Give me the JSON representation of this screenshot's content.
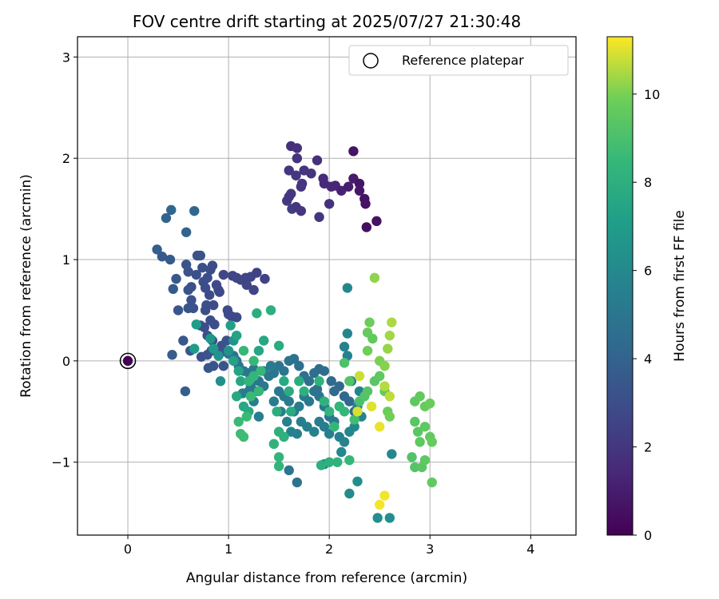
{
  "chart_data": {
    "type": "scatter",
    "title": "FOV centre drift starting at 2025/07/27 21:30:48",
    "xlabel": "Angular distance from reference (arcmin)",
    "ylabel": "Rotation from reference (arcmin)",
    "xlim": [
      -0.5,
      4.45
    ],
    "ylim": [
      -1.72,
      3.2
    ],
    "xticks": [
      "0",
      "1",
      "2",
      "3",
      "4"
    ],
    "yticks": [
      "−1",
      "0",
      "1",
      "2",
      "3"
    ],
    "grid": true,
    "legend": {
      "placement": "top-right",
      "label": "Reference platepar"
    },
    "colorbar": {
      "label": "Hours from first FF file",
      "range": [
        0,
        11.3
      ],
      "ticks": [
        "0",
        "2",
        "4",
        "6",
        "8",
        "10"
      ],
      "colormap": "viridis"
    },
    "reference_point": {
      "x": 0,
      "y": 0,
      "hours": 0
    },
    "points": [
      [
        1.62,
        2.12,
        1.7
      ],
      [
        1.68,
        2.1,
        1.8
      ],
      [
        1.88,
        1.98,
        1.7
      ],
      [
        1.68,
        2.0,
        1.9
      ],
      [
        1.75,
        1.88,
        1.9
      ],
      [
        1.82,
        1.85,
        1.9
      ],
      [
        1.6,
        1.88,
        2.0
      ],
      [
        1.67,
        1.83,
        2.0
      ],
      [
        1.94,
        1.8,
        1.5
      ],
      [
        1.95,
        1.75,
        1.5
      ],
      [
        1.72,
        1.72,
        1.9
      ],
      [
        1.73,
        1.75,
        2.0
      ],
      [
        1.62,
        1.65,
        2.1
      ],
      [
        1.58,
        1.58,
        2.2
      ],
      [
        1.63,
        1.5,
        2.3
      ],
      [
        1.67,
        1.52,
        2.0
      ],
      [
        1.72,
        1.48,
        2.0
      ],
      [
        1.9,
        1.42,
        2.0
      ],
      [
        2.0,
        1.55,
        1.8
      ],
      [
        2.02,
        1.72,
        1.4
      ],
      [
        2.06,
        1.73,
        1.3
      ],
      [
        2.12,
        1.68,
        1.2
      ],
      [
        2.19,
        1.72,
        1.0
      ],
      [
        2.24,
        1.8,
        0.9
      ],
      [
        2.24,
        2.07,
        0.7
      ],
      [
        2.3,
        1.75,
        0.7
      ],
      [
        2.3,
        1.68,
        0.8
      ],
      [
        2.35,
        1.6,
        0.6
      ],
      [
        2.36,
        1.55,
        0.6
      ],
      [
        2.37,
        1.32,
        0.5
      ],
      [
        2.47,
        1.38,
        0.6
      ],
      [
        1.6,
        1.62,
        2.0
      ],
      [
        0.43,
        1.49,
        4.2
      ],
      [
        0.38,
        1.41,
        4.0
      ],
      [
        0.66,
        1.48,
        4.2
      ],
      [
        0.58,
        1.27,
        4.0
      ],
      [
        0.29,
        1.1,
        3.8
      ],
      [
        0.34,
        1.03,
        3.6
      ],
      [
        0.42,
        1.0,
        3.6
      ],
      [
        0.48,
        0.81,
        3.5
      ],
      [
        0.45,
        0.71,
        3.6
      ],
      [
        0.5,
        0.5,
        3.4
      ],
      [
        0.58,
        0.95,
        3.3
      ],
      [
        0.6,
        0.88,
        3.2
      ],
      [
        0.69,
        1.04,
        3.2
      ],
      [
        0.72,
        1.04,
        3.2
      ],
      [
        0.74,
        0.92,
        3.1
      ],
      [
        0.68,
        0.85,
        3.1
      ],
      [
        0.79,
        0.82,
        3.0
      ],
      [
        0.82,
        0.9,
        3.0
      ],
      [
        0.63,
        0.73,
        3.1
      ],
      [
        0.6,
        0.7,
        3.2
      ],
      [
        0.63,
        0.6,
        3.2
      ],
      [
        0.65,
        0.52,
        3.2
      ],
      [
        0.6,
        0.52,
        3.3
      ],
      [
        0.55,
        0.2,
        3.5
      ],
      [
        0.62,
        0.1,
        3.6
      ],
      [
        0.44,
        0.06,
        3.7
      ],
      [
        0.57,
        -0.3,
        3.7
      ],
      [
        0.75,
        0.78,
        3.0
      ],
      [
        0.77,
        0.72,
        3.0
      ],
      [
        0.81,
        0.65,
        2.9
      ],
      [
        0.84,
        0.94,
        2.9
      ],
      [
        0.9,
        0.7,
        2.8
      ],
      [
        0.91,
        0.68,
        2.8
      ],
      [
        0.78,
        0.55,
        3.0
      ],
      [
        0.85,
        0.55,
        2.9
      ],
      [
        0.72,
        0.35,
        3.0
      ],
      [
        0.76,
        0.33,
        3.0
      ],
      [
        0.79,
        0.25,
        3.1
      ],
      [
        0.84,
        0.2,
        3.1
      ],
      [
        0.82,
        0.4,
        3.0
      ],
      [
        0.86,
        0.36,
        3.0
      ],
      [
        0.77,
        0.5,
        3.0
      ],
      [
        0.73,
        0.04,
        3.1
      ],
      [
        0.79,
        0.06,
        3.2
      ],
      [
        0.83,
        0.1,
        3.2
      ],
      [
        0.85,
        -0.05,
        3.3
      ],
      [
        0.8,
        -0.07,
        3.4
      ],
      [
        0.92,
        0.08,
        3.3
      ],
      [
        0.95,
        -0.05,
        3.4
      ],
      [
        0.99,
        0.5,
        2.9
      ],
      [
        1.0,
        0.46,
        2.9
      ],
      [
        1.03,
        0.44,
        2.8
      ],
      [
        1.08,
        0.43,
        2.8
      ],
      [
        1.04,
        0.84,
        2.6
      ],
      [
        1.08,
        0.82,
        2.6
      ],
      [
        1.12,
        0.8,
        2.6
      ],
      [
        1.17,
        0.82,
        2.6
      ],
      [
        1.22,
        0.83,
        2.6
      ],
      [
        1.28,
        0.87,
        2.5
      ],
      [
        1.36,
        0.81,
        2.5
      ],
      [
        1.25,
        0.7,
        2.6
      ],
      [
        1.18,
        0.75,
        2.6
      ],
      [
        0.95,
        0.85,
        2.7
      ],
      [
        0.88,
        0.75,
        2.8
      ],
      [
        0.93,
        0.15,
        3.2
      ],
      [
        0.98,
        0.2,
        3.3
      ],
      [
        1.0,
        0.07,
        4.8
      ],
      [
        1.05,
        0.05,
        4.8
      ],
      [
        1.08,
        0.0,
        4.9
      ],
      [
        1.1,
        -0.05,
        4.9
      ],
      [
        1.15,
        -0.1,
        5.0
      ],
      [
        1.2,
        -0.12,
        5.0
      ],
      [
        1.25,
        -0.08,
        5.1
      ],
      [
        1.3,
        -0.2,
        5.0
      ],
      [
        1.22,
        -0.25,
        5.0
      ],
      [
        1.28,
        -0.3,
        5.2
      ],
      [
        1.35,
        -0.25,
        5.1
      ],
      [
        1.4,
        -0.15,
        5.1
      ],
      [
        1.45,
        -0.12,
        5.0
      ],
      [
        1.5,
        -0.05,
        5.0
      ],
      [
        1.55,
        -0.1,
        5.0
      ],
      [
        1.6,
        0.0,
        4.9
      ],
      [
        1.65,
        0.02,
        4.8
      ],
      [
        1.7,
        -0.05,
        4.7
      ],
      [
        1.75,
        -0.15,
        4.7
      ],
      [
        1.8,
        -0.2,
        4.6
      ],
      [
        1.85,
        -0.12,
        4.6
      ],
      [
        1.9,
        -0.08,
        4.5
      ],
      [
        1.95,
        -0.1,
        4.5
      ],
      [
        2.02,
        -0.2,
        4.4
      ],
      [
        2.05,
        -0.3,
        4.4
      ],
      [
        2.1,
        -0.25,
        4.4
      ],
      [
        2.15,
        -0.35,
        4.3
      ],
      [
        2.2,
        -0.4,
        4.3
      ],
      [
        2.25,
        -0.5,
        4.2
      ],
      [
        1.5,
        -0.3,
        5.1
      ],
      [
        1.55,
        -0.35,
        5.2
      ],
      [
        1.6,
        -0.4,
        5.2
      ],
      [
        1.65,
        -0.5,
        5.2
      ],
      [
        1.7,
        -0.45,
        5.3
      ],
      [
        1.75,
        -0.35,
        5.2
      ],
      [
        1.8,
        -0.4,
        5.1
      ],
      [
        1.85,
        -0.3,
        5.0
      ],
      [
        1.9,
        -0.35,
        5.0
      ],
      [
        1.95,
        -0.45,
        5.0
      ],
      [
        2.0,
        -0.55,
        5.0
      ],
      [
        1.45,
        -0.4,
        5.3
      ],
      [
        1.52,
        -0.5,
        5.4
      ],
      [
        1.58,
        -0.6,
        5.5
      ],
      [
        1.62,
        -0.7,
        5.6
      ],
      [
        1.68,
        -0.72,
        5.6
      ],
      [
        1.72,
        -0.6,
        5.5
      ],
      [
        1.78,
        -0.65,
        5.5
      ],
      [
        1.85,
        -0.7,
        5.6
      ],
      [
        1.9,
        -0.6,
        5.4
      ],
      [
        1.95,
        -0.65,
        5.4
      ],
      [
        2.0,
        -0.72,
        5.5
      ],
      [
        2.05,
        -0.6,
        5.3
      ],
      [
        2.1,
        -0.75,
        5.6
      ],
      [
        2.15,
        -0.8,
        5.7
      ],
      [
        2.2,
        -0.7,
        5.8
      ],
      [
        2.25,
        -0.65,
        5.9
      ],
      [
        2.28,
        -0.45,
        5.7
      ],
      [
        2.32,
        -0.55,
        5.8
      ],
      [
        2.3,
        -0.3,
        5.6
      ],
      [
        2.22,
        -0.2,
        5.5
      ],
      [
        2.18,
        0.05,
        5.6
      ],
      [
        2.15,
        0.14,
        5.7
      ],
      [
        2.18,
        0.27,
        5.8
      ],
      [
        2.18,
        0.72,
        5.9
      ],
      [
        1.6,
        -1.08,
        5.0
      ],
      [
        1.68,
        -1.2,
        4.9
      ],
      [
        1.95,
        -1.02,
        5.1
      ],
      [
        2.2,
        -1.31,
        6.1
      ],
      [
        2.28,
        -1.19,
        6.2
      ],
      [
        2.48,
        -1.55,
        6.3
      ],
      [
        2.6,
        -1.55,
        6.3
      ],
      [
        2.62,
        -0.92,
        5.9
      ],
      [
        2.12,
        -0.9,
        6.0
      ],
      [
        1.35,
        -0.1,
        5.3
      ],
      [
        1.42,
        -0.05,
        5.3
      ],
      [
        1.2,
        -0.3,
        5.2
      ],
      [
        1.14,
        -0.32,
        5.3
      ],
      [
        1.3,
        -0.55,
        5.4
      ],
      [
        1.25,
        -0.4,
        5.4
      ],
      [
        1.88,
        -0.28,
        4.8
      ],
      [
        0.92,
        -0.2,
        6.3
      ],
      [
        1.0,
        0.1,
        6.5
      ],
      [
        1.05,
        0.2,
        6.6
      ],
      [
        0.9,
        0.05,
        6.6
      ],
      [
        0.82,
        0.22,
        6.7
      ],
      [
        0.85,
        0.12,
        6.8
      ],
      [
        0.68,
        0.36,
        7.0
      ],
      [
        0.66,
        0.12,
        7.0
      ],
      [
        1.02,
        0.35,
        7.2
      ],
      [
        1.08,
        0.25,
        7.3
      ],
      [
        1.05,
        0.0,
        7.3
      ],
      [
        1.1,
        -0.1,
        7.4
      ],
      [
        1.12,
        -0.2,
        7.5
      ],
      [
        1.08,
        -0.35,
        7.6
      ],
      [
        1.15,
        -0.45,
        7.6
      ],
      [
        1.2,
        -0.5,
        7.7
      ],
      [
        1.3,
        0.1,
        7.5
      ],
      [
        1.35,
        0.2,
        7.6
      ],
      [
        1.28,
        0.47,
        7.9
      ],
      [
        1.42,
        0.5,
        8.0
      ],
      [
        1.5,
        0.15,
        7.8
      ],
      [
        1.55,
        -0.2,
        7.7
      ],
      [
        1.6,
        -0.3,
        7.8
      ],
      [
        1.48,
        -0.5,
        7.9
      ],
      [
        1.5,
        -0.7,
        8.0
      ],
      [
        1.55,
        -0.75,
        8.1
      ],
      [
        1.45,
        -0.82,
        8.2
      ],
      [
        1.5,
        -0.95,
        8.3
      ],
      [
        1.5,
        -1.04,
        8.3
      ],
      [
        1.62,
        -0.5,
        7.8
      ],
      [
        1.7,
        -0.2,
        7.9
      ],
      [
        1.75,
        -0.3,
        8.0
      ],
      [
        1.9,
        -0.2,
        8.1
      ],
      [
        1.95,
        -0.4,
        8.2
      ],
      [
        2.0,
        -0.5,
        8.3
      ],
      [
        2.05,
        -0.65,
        8.4
      ],
      [
        2.1,
        -0.45,
        8.3
      ],
      [
        2.15,
        -0.5,
        8.4
      ],
      [
        1.92,
        -1.03,
        8.0
      ],
      [
        2.0,
        -1.0,
        8.1
      ],
      [
        2.08,
        -1.0,
        8.2
      ],
      [
        2.2,
        -0.98,
        8.4
      ],
      [
        1.2,
        -0.2,
        8.3
      ],
      [
        1.25,
        -0.15,
        8.4
      ],
      [
        1.32,
        -0.1,
        8.5
      ],
      [
        1.15,
        0.1,
        8.5
      ],
      [
        1.1,
        -0.6,
        8.6
      ],
      [
        1.12,
        -0.72,
        8.7
      ],
      [
        1.15,
        -0.75,
        8.7
      ],
      [
        1.18,
        -0.55,
        8.6
      ],
      [
        1.22,
        -0.35,
        8.6
      ],
      [
        1.3,
        -0.3,
        8.5
      ],
      [
        1.25,
        0.0,
        8.5
      ],
      [
        2.25,
        -0.58,
        8.8
      ],
      [
        2.3,
        -0.4,
        9.0
      ],
      [
        2.35,
        -0.35,
        9.2
      ],
      [
        2.38,
        -0.3,
        9.3
      ],
      [
        2.45,
        -0.2,
        9.4
      ],
      [
        2.5,
        -0.15,
        9.5
      ],
      [
        2.55,
        -0.3,
        9.6
      ],
      [
        2.15,
        -0.02,
        9.1
      ],
      [
        2.2,
        -0.2,
        9.2
      ],
      [
        2.43,
        0.22,
        9.6
      ],
      [
        2.38,
        0.28,
        9.7
      ],
      [
        2.4,
        0.38,
        9.8
      ],
      [
        2.45,
        0.82,
        10.2
      ],
      [
        2.38,
        0.1,
        9.9
      ],
      [
        2.5,
        0.0,
        10.0
      ],
      [
        2.55,
        -0.05,
        10.1
      ],
      [
        2.58,
        0.12,
        10.3
      ],
      [
        2.6,
        0.25,
        10.4
      ],
      [
        2.62,
        0.38,
        10.5
      ],
      [
        2.55,
        -0.25,
        10.6
      ],
      [
        2.6,
        -0.35,
        10.7
      ],
      [
        2.3,
        -0.15,
        10.8
      ],
      [
        2.28,
        -0.5,
        10.9
      ],
      [
        2.42,
        -0.45,
        11.0
      ],
      [
        2.5,
        -0.65,
        11.1
      ],
      [
        2.55,
        -1.33,
        11.2
      ],
      [
        2.5,
        -1.42,
        11.2
      ],
      [
        2.85,
        -0.4,
        9.5
      ],
      [
        2.9,
        -0.35,
        9.6
      ],
      [
        2.95,
        -0.45,
        9.7
      ],
      [
        3.0,
        -0.42,
        9.8
      ],
      [
        2.85,
        -0.6,
        9.4
      ],
      [
        2.88,
        -0.7,
        9.4
      ],
      [
        2.9,
        -0.8,
        9.5
      ],
      [
        2.95,
        -0.65,
        9.5
      ],
      [
        3.0,
        -0.75,
        9.6
      ],
      [
        2.82,
        -0.95,
        9.2
      ],
      [
        2.85,
        -1.05,
        9.3
      ],
      [
        2.92,
        -1.05,
        9.4
      ],
      [
        2.95,
        -0.98,
        9.5
      ],
      [
        3.02,
        -1.2,
        9.6
      ],
      [
        3.02,
        -0.8,
        9.7
      ],
      [
        2.58,
        -0.5,
        9.8
      ],
      [
        2.6,
        -0.55,
        9.9
      ]
    ]
  }
}
